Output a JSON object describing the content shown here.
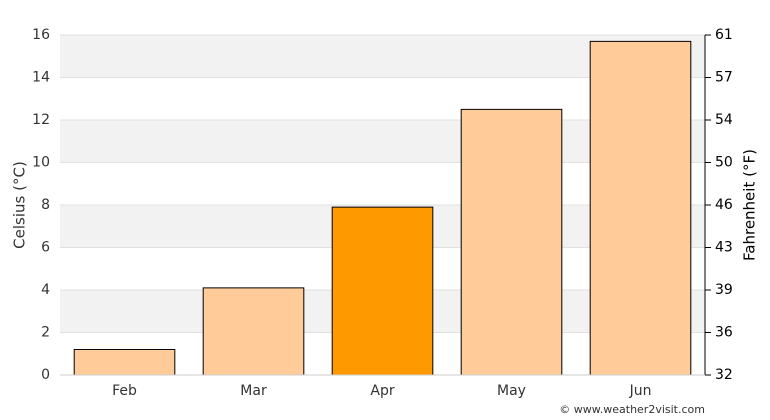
{
  "chart_data": {
    "type": "bar",
    "categories": [
      "Feb",
      "Mar",
      "Apr",
      "May",
      "Jun"
    ],
    "values": [
      1.2,
      4.1,
      7.9,
      12.5,
      15.7
    ],
    "colors": [
      "#ffcc99",
      "#ffcc99",
      "#ff9900",
      "#ffcc99",
      "#ffcc99"
    ],
    "ylabel": "Celsius (°C)",
    "y2label": "Fahrenheit (°F)",
    "ylim": [
      0,
      16
    ],
    "yticks": [
      0,
      2,
      4,
      6,
      8,
      10,
      12,
      14,
      16
    ],
    "y2lim": [
      32,
      60.8
    ],
    "y2ticks": [
      32,
      {
        "value": 35.6,
        "label": "36"
      },
      {
        "value": 39.2,
        "label": "39"
      },
      {
        "value": 42.8,
        "label": "43"
      },
      {
        "value": 46.4,
        "label": "46"
      },
      50,
      {
        "value": 53.6,
        "label": "54"
      },
      {
        "value": 57.2,
        "label": "57"
      },
      {
        "value": 60.8,
        "label": "61"
      }
    ],
    "grid": true,
    "credit": "© www.weather2visit.com"
  }
}
